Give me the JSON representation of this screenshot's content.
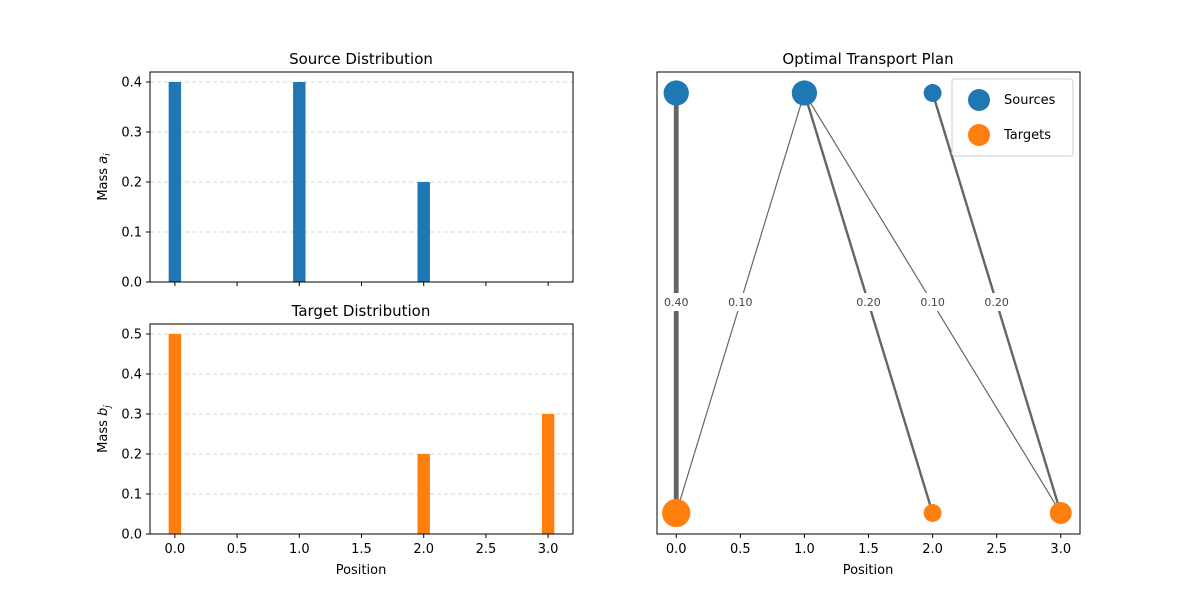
{
  "chart_data": [
    {
      "type": "bar",
      "title": "Source Distribution",
      "xlabel": "",
      "ylabel": "Mass",
      "ylabel_sub": "i",
      "ylabel_var": "a",
      "x": [
        0,
        1,
        2
      ],
      "values": [
        0.4,
        0.4,
        0.2
      ],
      "xlim": [
        -0.2,
        3.2
      ],
      "ylim": [
        0,
        0.42
      ],
      "yticks": [
        "0.0",
        "0.1",
        "0.2",
        "0.3",
        "0.4"
      ],
      "ytick_values": [
        0,
        0.1,
        0.2,
        0.3,
        0.4
      ],
      "xticks_labels_shown": false,
      "grid": "y-dashed",
      "color": "#1f77b4"
    },
    {
      "type": "bar",
      "title": "Target Distribution",
      "xlabel": "Position",
      "ylabel": "Mass",
      "ylabel_sub": "j",
      "ylabel_var": "b",
      "x": [
        0,
        2,
        3
      ],
      "values": [
        0.5,
        0.2,
        0.3
      ],
      "xlim": [
        -0.2,
        3.2
      ],
      "ylim": [
        0,
        0.525
      ],
      "yticks": [
        "0.0",
        "0.1",
        "0.2",
        "0.3",
        "0.4",
        "0.5"
      ],
      "ytick_values": [
        0,
        0.1,
        0.2,
        0.3,
        0.4,
        0.5
      ],
      "xticks": [
        "0.0",
        "0.5",
        "1.0",
        "1.5",
        "2.0",
        "2.5",
        "3.0"
      ],
      "xtick_values": [
        0,
        0.5,
        1,
        1.5,
        2,
        2.5,
        3
      ],
      "grid": "y-dashed",
      "color": "#ff7f0e"
    },
    {
      "type": "scatter",
      "title": "Optimal Transport Plan",
      "xlabel": "Position",
      "xlim": [
        -0.15,
        3.15
      ],
      "xticks": [
        "0.0",
        "0.5",
        "1.0",
        "1.5",
        "2.0",
        "2.5",
        "3.0"
      ],
      "xtick_values": [
        0,
        0.5,
        1,
        1.5,
        2,
        2.5,
        3
      ],
      "sources": [
        {
          "x": 0,
          "mass": 0.4
        },
        {
          "x": 1,
          "mass": 0.4
        },
        {
          "x": 2,
          "mass": 0.2
        }
      ],
      "targets": [
        {
          "x": 0,
          "mass": 0.5
        },
        {
          "x": 2,
          "mass": 0.2
        },
        {
          "x": 3,
          "mass": 0.3
        }
      ],
      "flows": [
        {
          "from": 0,
          "to": 0,
          "mass": 0.4,
          "label": "0.40"
        },
        {
          "from": 1,
          "to": 0,
          "mass": 0.1,
          "label": "0.10"
        },
        {
          "from": 1,
          "to": 2,
          "mass": 0.2,
          "label": "0.20"
        },
        {
          "from": 1,
          "to": 3,
          "mass": 0.1,
          "label": "0.10"
        },
        {
          "from": 2,
          "to": 3,
          "mass": 0.2,
          "label": "0.20"
        }
      ],
      "legend": [
        {
          "label": "Sources",
          "color": "#1f77b4"
        },
        {
          "label": "Targets",
          "color": "#ff7f0e"
        }
      ],
      "legend_position": "top-right",
      "source_color": "#1f77b4",
      "target_color": "#ff7f0e",
      "line_color": "#555555"
    }
  ]
}
